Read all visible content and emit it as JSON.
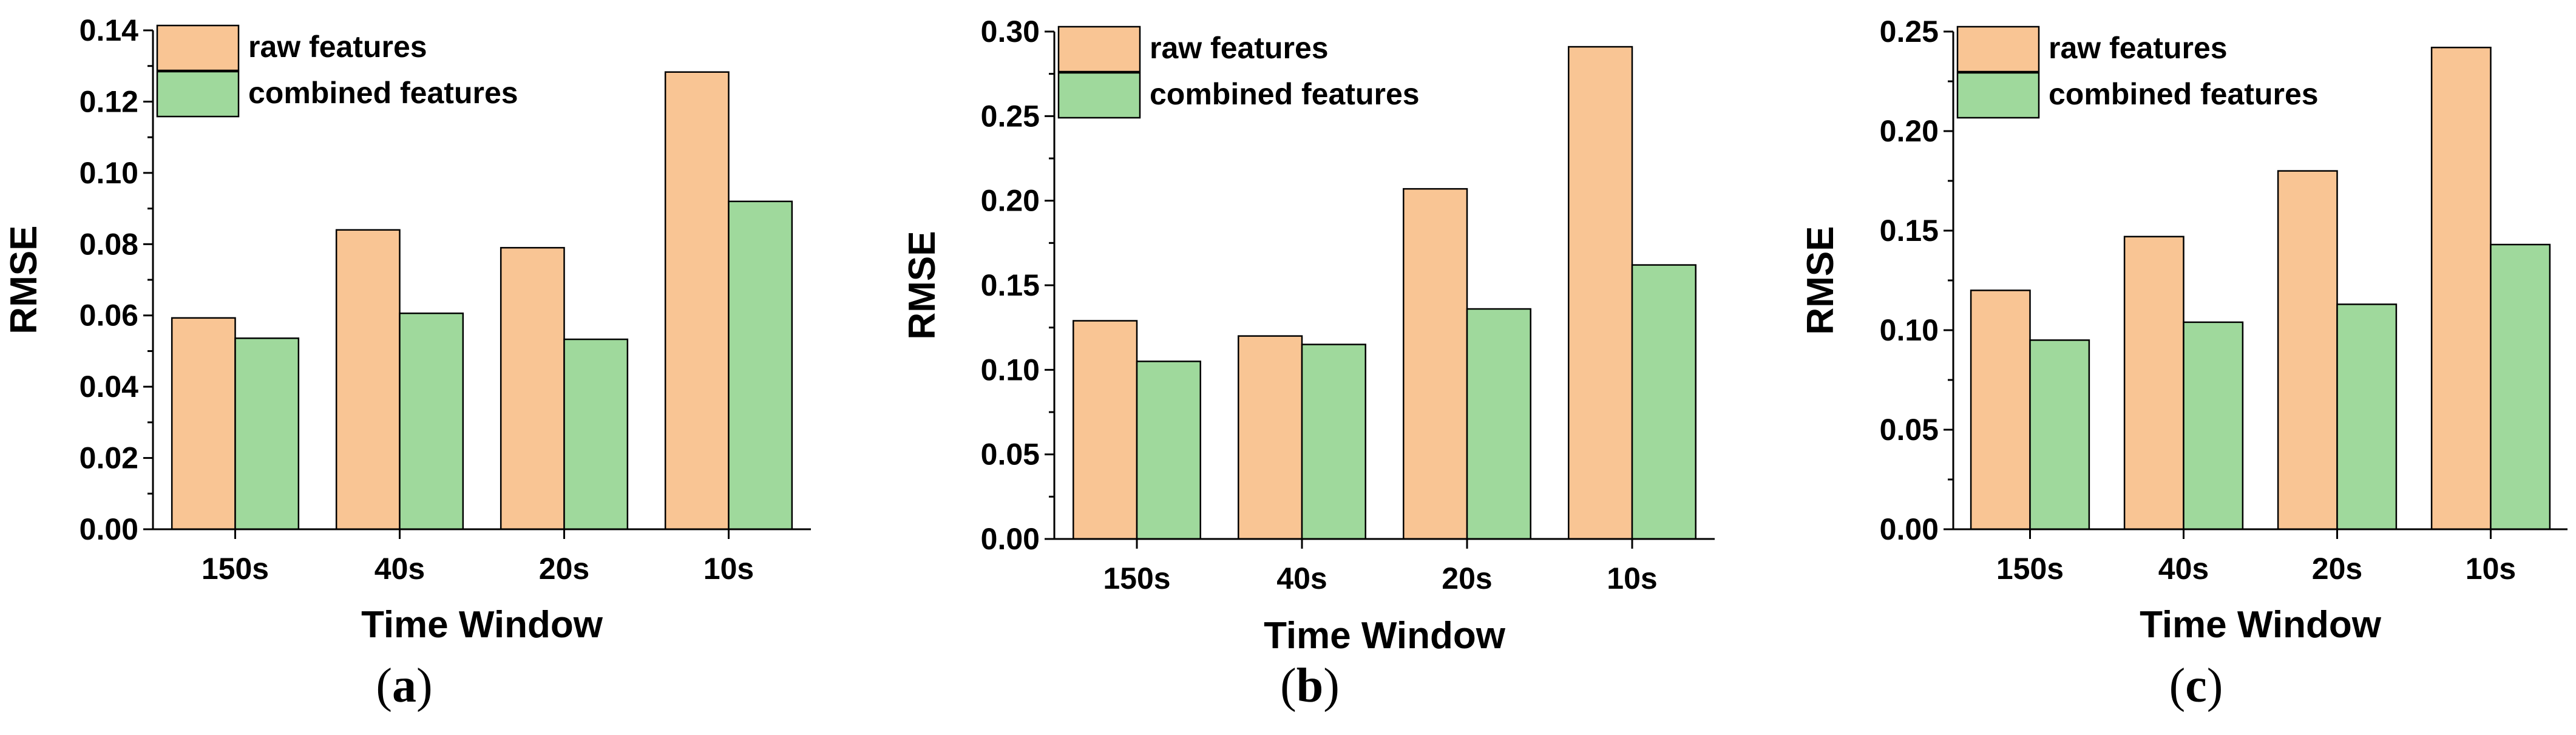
{
  "colors": {
    "raw": "#f9c594",
    "combined": "#9fd99c",
    "axis": "#000000"
  },
  "chart_data": [
    {
      "type": "bar",
      "panel_label": "a",
      "categories": [
        "150s",
        "40s",
        "20s",
        "10s"
      ],
      "series": [
        {
          "name": "raw features",
          "values": [
            0.0593,
            0.084,
            0.079,
            0.1283
          ]
        },
        {
          "name": "combined features",
          "values": [
            0.0536,
            0.0606,
            0.0533,
            0.092
          ]
        }
      ],
      "xlabel": "Time Window",
      "ylabel": "RMSE",
      "ylim": [
        0,
        0.14
      ],
      "yticks": [
        "0.00",
        "0.02",
        "0.04",
        "0.06",
        "0.08",
        "0.10",
        "0.12",
        "0.14"
      ],
      "legend": "top-left",
      "grid": false
    },
    {
      "type": "bar",
      "panel_label": "b",
      "categories": [
        "150s",
        "40s",
        "20s",
        "10s"
      ],
      "series": [
        {
          "name": "raw features",
          "values": [
            0.129,
            0.12,
            0.207,
            0.291
          ]
        },
        {
          "name": "combined features",
          "values": [
            0.105,
            0.115,
            0.136,
            0.162
          ]
        }
      ],
      "xlabel": "Time Window",
      "ylabel": "RMSE",
      "ylim": [
        0,
        0.3
      ],
      "yticks": [
        "0.00",
        "0.05",
        "0.10",
        "0.15",
        "0.20",
        "0.25",
        "0.30"
      ],
      "legend": "top-left",
      "grid": false
    },
    {
      "type": "bar",
      "panel_label": "c",
      "categories": [
        "150s",
        "40s",
        "20s",
        "10s"
      ],
      "series": [
        {
          "name": "raw features",
          "values": [
            0.12,
            0.147,
            0.18,
            0.242
          ]
        },
        {
          "name": "combined features",
          "values": [
            0.095,
            0.104,
            0.113,
            0.143
          ]
        }
      ],
      "xlabel": "Time Window",
      "ylabel": "RMSE",
      "ylim": [
        0,
        0.25
      ],
      "yticks": [
        "0.00",
        "0.05",
        "0.10",
        "0.15",
        "0.20",
        "0.25"
      ],
      "legend": "top-left",
      "grid": false
    }
  ]
}
